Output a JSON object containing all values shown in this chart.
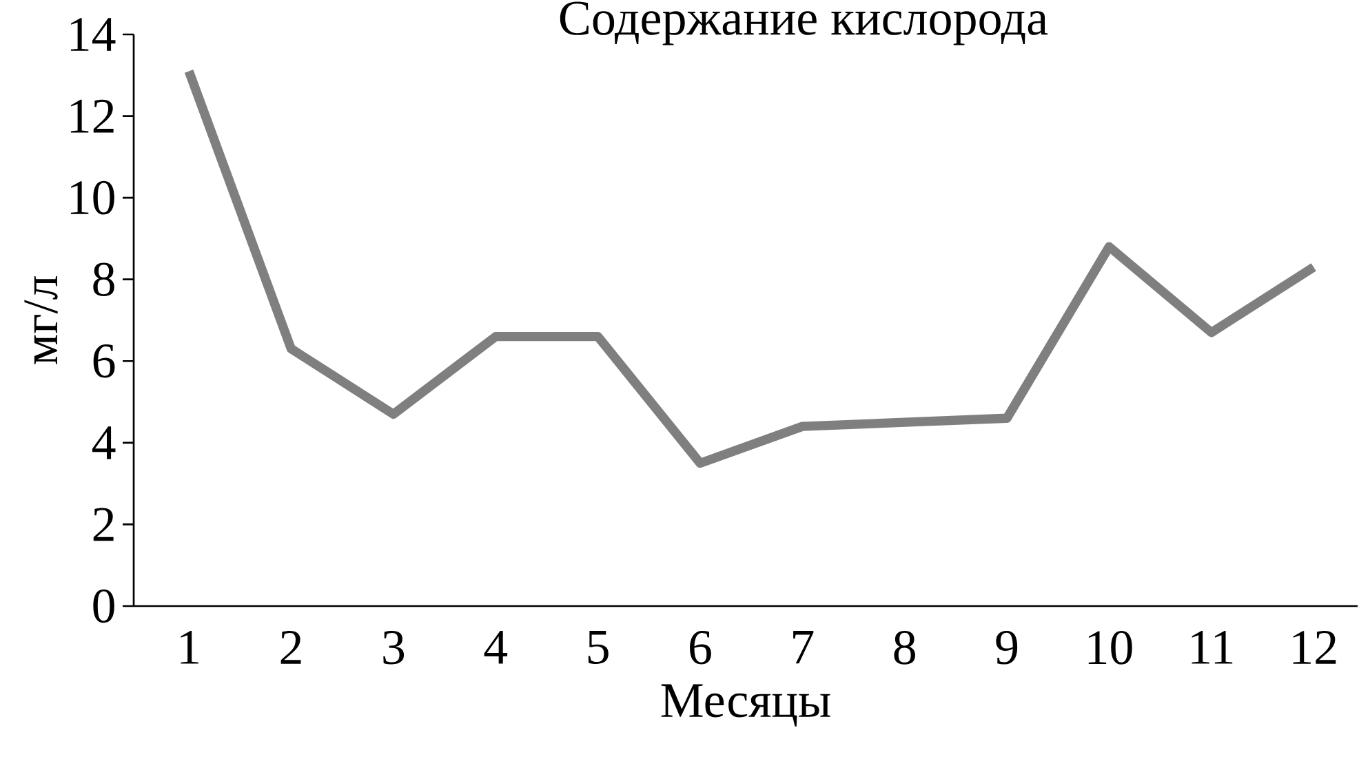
{
  "chart_data": {
    "type": "line",
    "title": "Содержание кислорода",
    "xlabel": "Месяцы",
    "ylabel": "мг/л",
    "categories": [
      "1",
      "2",
      "3",
      "4",
      "5",
      "6",
      "7",
      "8",
      "9",
      "10",
      "11",
      "12"
    ],
    "series": [
      {
        "color": "#7f7f7f",
        "values": [
          13.1,
          6.3,
          4.7,
          6.6,
          6.6,
          3.5,
          4.4,
          4.5,
          4.6,
          8.8,
          6.7,
          8.3
        ]
      }
    ],
    "ylim": [
      0,
      14
    ],
    "yticks": [
      0,
      2,
      4,
      6,
      8,
      10,
      12,
      14
    ],
    "grid": false,
    "marker": "none",
    "line_style": "solid"
  }
}
